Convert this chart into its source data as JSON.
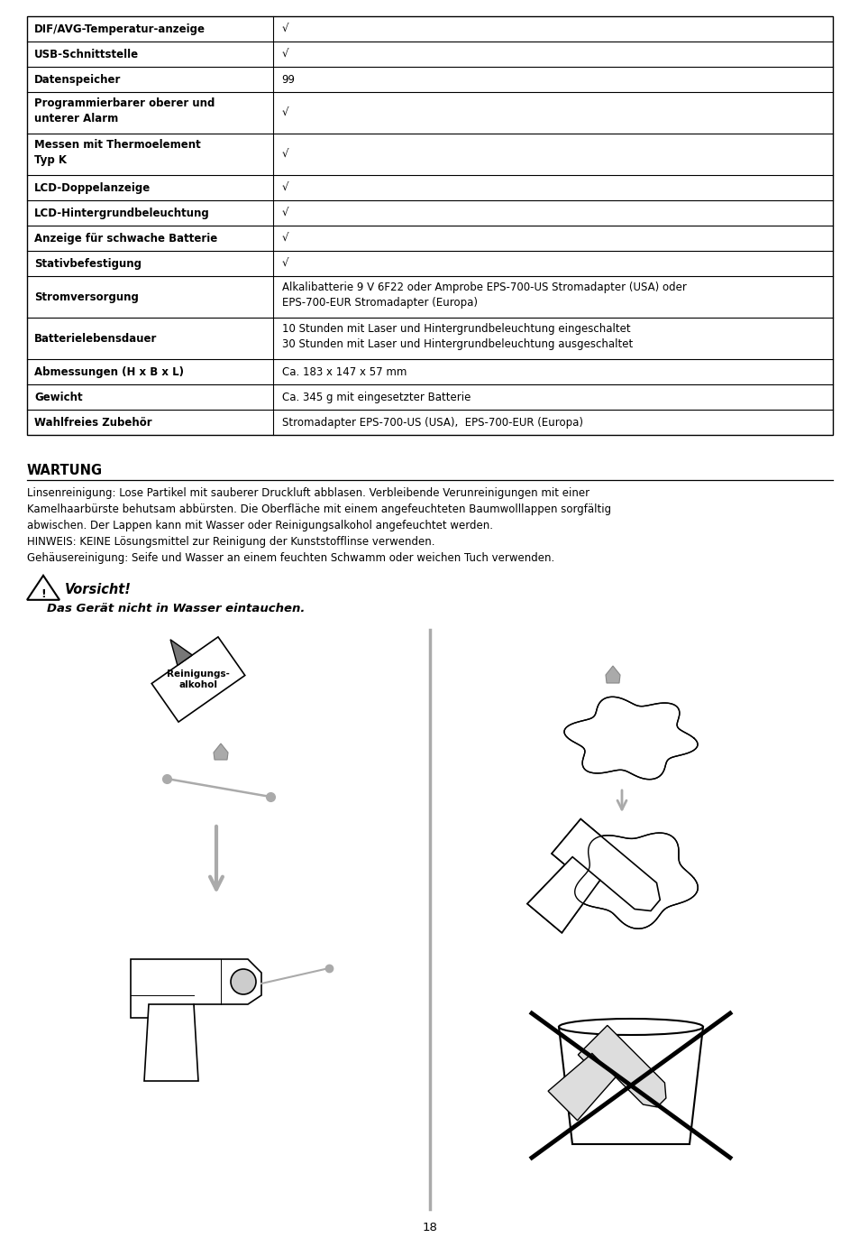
{
  "page_number": "18",
  "background_color": "#ffffff",
  "table_rows": [
    {
      "label": "DIF/AVG-Temperatur-anzeige",
      "value": "√",
      "lines": 1,
      "val_lines": 1
    },
    {
      "label": "USB-Schnittstelle",
      "value": "√",
      "lines": 1,
      "val_lines": 1
    },
    {
      "label": "Datenspeicher",
      "value": "99",
      "lines": 1,
      "val_lines": 1
    },
    {
      "label": "Programmierbarer oberer und\nunterer Alarm",
      "value": "√",
      "lines": 2,
      "val_lines": 1
    },
    {
      "label": "Messen mit Thermoelement\nTyp K",
      "value": "√",
      "lines": 2,
      "val_lines": 1
    },
    {
      "label": "LCD-Doppelanzeige",
      "value": "√",
      "lines": 1,
      "val_lines": 1
    },
    {
      "label": "LCD-Hintergrundbeleuchtung",
      "value": "√",
      "lines": 1,
      "val_lines": 1
    },
    {
      "label": "Anzeige für schwache Batterie",
      "value": "√",
      "lines": 1,
      "val_lines": 1
    },
    {
      "label": "Stativbefestigung",
      "value": "√",
      "lines": 1,
      "val_lines": 1
    },
    {
      "label": "Stromversorgung",
      "value": "Alkalibatterie 9 V 6F22 oder Amprobe EPS-700-US Stromadapter (USA) oder\nEPS-700-EUR Stromadapter (Europa)",
      "lines": 1,
      "val_lines": 2
    },
    {
      "label": "Batterielebensdauer",
      "value": "10 Stunden mit Laser und Hintergrundbeleuchtung eingeschaltet\n30 Stunden mit Laser und Hintergrundbeleuchtung ausgeschaltet",
      "lines": 1,
      "val_lines": 2
    },
    {
      "label": "Abmessungen (H x B x L)",
      "value": "Ca. 183 x 147 x 57 mm",
      "lines": 1,
      "val_lines": 1
    },
    {
      "label": "Gewicht",
      "value": "Ca. 345 g mit eingesetzter Batterie",
      "lines": 1,
      "val_lines": 1
    },
    {
      "label": "Wahlfreies Zubehör",
      "value": "Stromadapter EPS-700-US (USA),  EPS-700-EUR (Europa)",
      "lines": 1,
      "val_lines": 1
    }
  ],
  "section_title": "WARTUNG",
  "body_text": "Linsenreinigung: Lose Partikel mit sauberer Druckluft abblasen. Verbleibende Verunreinigungen mit einer\nKamelhaarbürste behutsam abbürsten. Die Oberfläche mit einem angefeuchteten Baumwolllappen sorgfältig\nabwischen. Der Lappen kann mit Wasser oder Reinigungsalkohol angefeuchtet werden.\nHINWEIS: KEINE Lösungsmittel zur Reinigung der Kunststofflinse verwenden.\nGehäusereinigung: Seife und Wasser an einem feuchten Schwamm oder weichen Tuch verwenden.",
  "warning_title": "Vorsicht!",
  "warning_text": "Das Gerät nicht in Wasser eintauchen.",
  "border_color": "#000000",
  "text_color": "#000000",
  "label_fontsize": 8.5,
  "value_fontsize": 8.5,
  "section_fontsize": 10.5,
  "body_fontsize": 8.5
}
